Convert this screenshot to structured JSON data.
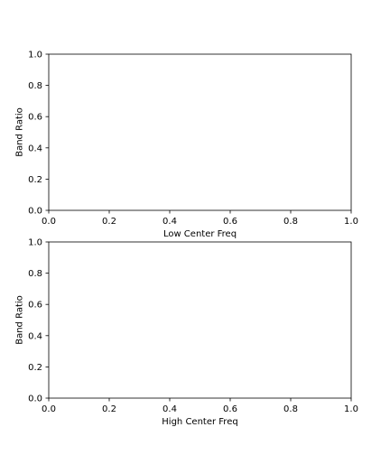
{
  "chart_data": [
    {
      "type": "scatter",
      "title": "",
      "xlabel": "Low Center Freq",
      "ylabel": "Band Ratio",
      "xlim": [
        0.0,
        1.0
      ],
      "ylim": [
        0.0,
        1.0
      ],
      "xticks": [
        "0.0",
        "0.2",
        "0.4",
        "0.6",
        "0.8",
        "1.0"
      ],
      "yticks": [
        "0.0",
        "0.2",
        "0.4",
        "0.6",
        "0.8",
        "1.0"
      ],
      "series": [],
      "grid": false,
      "legend": false
    },
    {
      "type": "scatter",
      "title": "",
      "xlabel": "High Center Freq",
      "ylabel": "Band Ratio",
      "xlim": [
        0.0,
        1.0
      ],
      "ylim": [
        0.0,
        1.0
      ],
      "xticks": [
        "0.0",
        "0.2",
        "0.4",
        "0.6",
        "0.8",
        "1.0"
      ],
      "yticks": [
        "0.0",
        "0.2",
        "0.4",
        "0.6",
        "0.8",
        "1.0"
      ],
      "series": [],
      "grid": false,
      "legend": false
    }
  ]
}
